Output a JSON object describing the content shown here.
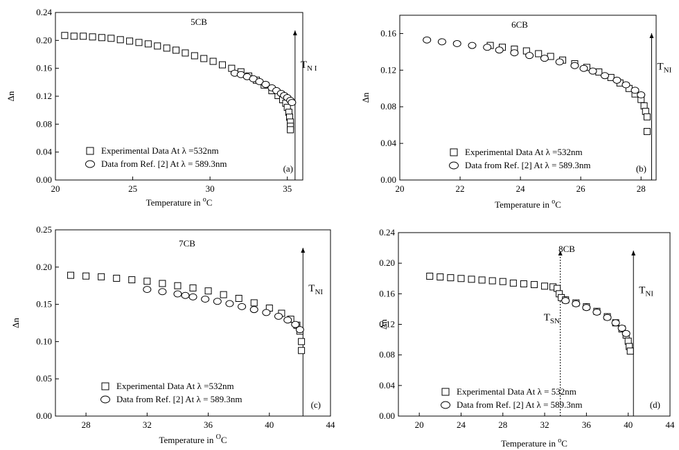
{
  "chart_data": [
    {
      "type": "scatter",
      "title": "5CB",
      "panel_label": "(a)",
      "xlabel": "Temperature in",
      "xlabel_unit": "o",
      "xlabel_unit_tail": "C",
      "ylabel": "Δn",
      "xlim": [
        20,
        36
      ],
      "ylim": [
        0.0,
        0.24
      ],
      "xticks": [
        20,
        25,
        30,
        35
      ],
      "yticks": [
        0.0,
        0.04,
        0.08,
        0.12,
        0.16,
        0.2,
        0.24
      ],
      "ytick_decimals": 2,
      "transition_markers": [
        {
          "label": "T",
          "sub": "N I",
          "x": 35.5,
          "style": "solid"
        }
      ],
      "legend": [
        "Experimental Data At λ =532nm",
        "Data from Ref. [2] At λ = 589.3nm"
      ],
      "series": [
        {
          "name": "Experimental Data At λ =532nm",
          "marker": "square",
          "x": [
            20.6,
            21.2,
            21.8,
            22.4,
            23.0,
            23.6,
            24.2,
            24.8,
            25.4,
            26.0,
            26.6,
            27.2,
            27.8,
            28.4,
            29.0,
            29.6,
            30.2,
            30.8,
            31.4,
            32.0,
            32.5,
            33.0,
            33.5,
            34.0,
            34.4,
            34.7,
            34.9,
            35.0,
            35.1,
            35.15,
            35.2,
            35.2,
            35.2
          ],
          "y": [
            0.207,
            0.206,
            0.206,
            0.205,
            0.204,
            0.203,
            0.201,
            0.199,
            0.197,
            0.195,
            0.192,
            0.189,
            0.186,
            0.182,
            0.178,
            0.174,
            0.17,
            0.165,
            0.16,
            0.155,
            0.149,
            0.143,
            0.136,
            0.128,
            0.121,
            0.115,
            0.11,
            0.104,
            0.097,
            0.09,
            0.083,
            0.077,
            0.072
          ]
        },
        {
          "name": "Data from Ref. [2] At λ = 589.3nm",
          "marker": "circle",
          "x": [
            31.6,
            32.0,
            32.4,
            32.8,
            33.2,
            33.6,
            34.0,
            34.3,
            34.6,
            34.8,
            35.0,
            35.2,
            35.3
          ],
          "y": [
            0.153,
            0.151,
            0.148,
            0.145,
            0.141,
            0.137,
            0.132,
            0.128,
            0.124,
            0.121,
            0.118,
            0.114,
            0.111
          ]
        }
      ]
    },
    {
      "type": "scatter",
      "title": "6CB",
      "panel_label": "(b)",
      "xlabel": "Temperature in",
      "xlabel_unit": "o",
      "xlabel_unit_tail": "C",
      "ylabel": "Δn",
      "xlim": [
        20,
        28.5
      ],
      "ylim": [
        0.0,
        0.18
      ],
      "xticks": [
        20,
        22,
        24,
        26,
        28
      ],
      "yticks": [
        0.0,
        0.04,
        0.08,
        0.12,
        0.16
      ],
      "ytick_decimals": 2,
      "transition_markers": [
        {
          "label": "T",
          "sub": "NI",
          "x": 28.35,
          "style": "solid"
        }
      ],
      "legend": [
        "Experimental Data At λ =532nm",
        "Data from Ref. [2] At λ = 589.3nm"
      ],
      "series": [
        {
          "name": "Experimental Data At λ =532nm",
          "marker": "square",
          "x": [
            23.0,
            23.4,
            23.8,
            24.2,
            24.6,
            25.0,
            25.4,
            25.8,
            26.2,
            26.6,
            27.0,
            27.3,
            27.6,
            27.8,
            28.0,
            28.1,
            28.15,
            28.2,
            28.2
          ],
          "y": [
            0.147,
            0.145,
            0.143,
            0.141,
            0.138,
            0.135,
            0.131,
            0.127,
            0.123,
            0.118,
            0.112,
            0.106,
            0.1,
            0.094,
            0.088,
            0.081,
            0.075,
            0.069,
            0.053
          ]
        },
        {
          "name": "Data from Ref. [2] At λ = 589.3nm",
          "marker": "circle",
          "x": [
            20.9,
            21.4,
            21.9,
            22.4,
            22.9,
            23.3,
            23.8,
            24.3,
            24.8,
            25.3,
            25.8,
            26.1,
            26.4,
            26.8,
            27.2,
            27.5,
            27.8,
            28.0
          ],
          "y": [
            0.153,
            0.151,
            0.149,
            0.147,
            0.145,
            0.142,
            0.139,
            0.136,
            0.133,
            0.129,
            0.125,
            0.122,
            0.119,
            0.114,
            0.109,
            0.104,
            0.098,
            0.093
          ]
        }
      ]
    },
    {
      "type": "scatter",
      "title": "7CB",
      "panel_label": "(c)",
      "xlabel": "Temperature in",
      "xlabel_unit": "O",
      "xlabel_unit_tail": "C",
      "ylabel": "Δn",
      "xlim": [
        26,
        44
      ],
      "ylim": [
        0.0,
        0.25
      ],
      "xticks": [
        28,
        32,
        36,
        40,
        44
      ],
      "yticks": [
        0.0,
        0.05,
        0.1,
        0.15,
        0.2,
        0.25
      ],
      "ytick_decimals": 2,
      "transition_markers": [
        {
          "label": "T",
          "sub": "NI",
          "x": 42.2,
          "style": "solid"
        }
      ],
      "legend": [
        "Experimental Data At λ =532nm",
        "Data from Ref. [2] At λ = 589.3nm"
      ],
      "series": [
        {
          "name": "Experimental Data At λ =532nm",
          "marker": "square",
          "x": [
            27.0,
            28.0,
            29.0,
            30.0,
            31.0,
            32.0,
            33.0,
            34.0,
            35.0,
            36.0,
            37.0,
            38.0,
            39.0,
            40.0,
            40.8,
            41.4,
            41.8,
            42.0,
            42.1,
            42.1
          ],
          "y": [
            0.189,
            0.188,
            0.187,
            0.185,
            0.183,
            0.181,
            0.178,
            0.175,
            0.172,
            0.168,
            0.163,
            0.158,
            0.152,
            0.145,
            0.138,
            0.13,
            0.122,
            0.114,
            0.1,
            0.088
          ]
        },
        {
          "name": "Data from Ref. [2] At λ = 589.3nm",
          "marker": "circle",
          "x": [
            32.0,
            33.0,
            34.0,
            34.5,
            35.0,
            35.8,
            36.6,
            37.4,
            38.2,
            39.0,
            39.8,
            40.6,
            41.2,
            41.7,
            42.0
          ],
          "y": [
            0.17,
            0.167,
            0.164,
            0.162,
            0.16,
            0.157,
            0.154,
            0.151,
            0.147,
            0.143,
            0.139,
            0.134,
            0.129,
            0.123,
            0.116
          ]
        }
      ]
    },
    {
      "type": "scatter",
      "title": "8CB",
      "panel_label": "(d)",
      "xlabel": "Temperature in",
      "xlabel_unit": "o",
      "xlabel_unit_tail": "C",
      "ylabel": "Δn",
      "xlim": [
        18,
        44
      ],
      "ylim": [
        0.0,
        0.24
      ],
      "xticks": [
        20,
        24,
        28,
        32,
        36,
        40,
        44
      ],
      "yticks": [
        0.0,
        0.04,
        0.08,
        0.12,
        0.16,
        0.2,
        0.24
      ],
      "ytick_decimals": 2,
      "transition_markers": [
        {
          "label": "T",
          "sub": "SN",
          "x": 33.5,
          "style": "dotted"
        },
        {
          "label": "T",
          "sub": "NI",
          "x": 40.5,
          "style": "solid"
        }
      ],
      "legend": [
        "Experimental Data At λ = 532nm",
        "Data from Ref. [2] At λ = 589.3nm"
      ],
      "series": [
        {
          "name": "Experimental Data At λ = 532nm",
          "marker": "square",
          "x": [
            21.0,
            22.0,
            23.0,
            24.0,
            25.0,
            26.0,
            27.0,
            28.0,
            29.0,
            30.0,
            31.0,
            32.0,
            32.8,
            33.2,
            33.4,
            33.6,
            34.0,
            35.0,
            36.0,
            37.0,
            38.0,
            38.8,
            39.4,
            39.8,
            40.0,
            40.1,
            40.2
          ],
          "y": [
            0.183,
            0.182,
            0.181,
            0.18,
            0.179,
            0.178,
            0.177,
            0.176,
            0.174,
            0.173,
            0.172,
            0.17,
            0.169,
            0.167,
            0.16,
            0.155,
            0.152,
            0.148,
            0.143,
            0.137,
            0.13,
            0.122,
            0.114,
            0.106,
            0.098,
            0.091,
            0.085
          ]
        },
        {
          "name": "Data from Ref. [2] At λ = 589.3nm",
          "marker": "circle",
          "x": [
            34.0,
            35.0,
            36.0,
            37.0,
            38.0,
            38.8,
            39.4,
            39.8
          ],
          "y": [
            0.151,
            0.147,
            0.142,
            0.136,
            0.129,
            0.122,
            0.115,
            0.108
          ]
        }
      ]
    }
  ]
}
